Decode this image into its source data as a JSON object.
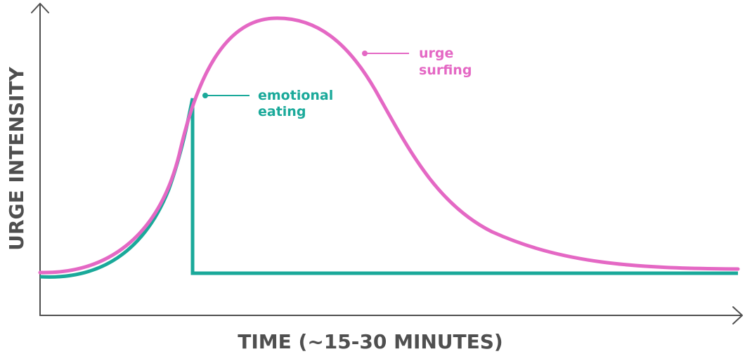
{
  "axes": {
    "x_label": "TIME (~15-30 MINUTES)",
    "y_label": "URGE INTENSITY"
  },
  "curves": {
    "urge_surfing": {
      "label_line1": "urge",
      "label_line2": "surfing",
      "color": "#e468c4"
    },
    "emotional_eating": {
      "label_line1": "emotional",
      "label_line2": "eating",
      "color": "#1aa99a"
    }
  },
  "axis_color": "#4f4f4f"
}
